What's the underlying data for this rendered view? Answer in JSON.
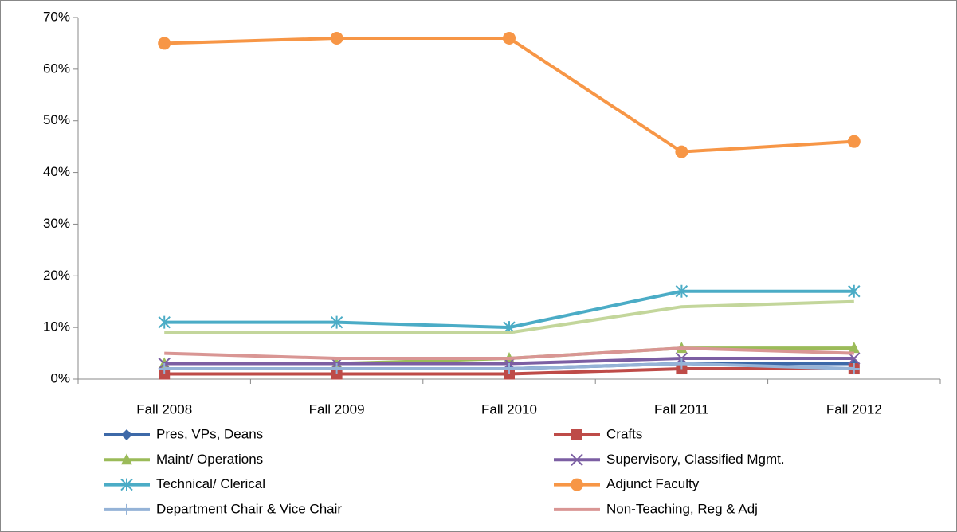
{
  "chart_data": {
    "type": "line",
    "categories": [
      "Fall 2008",
      "Fall 2009",
      "Fall 2010",
      "Fall 2011",
      "Fall 2012"
    ],
    "ylim": [
      0,
      70
    ],
    "yticks": [
      {
        "value": 0,
        "label": "0%"
      },
      {
        "value": 10,
        "label": "10%"
      },
      {
        "value": 20,
        "label": "20%"
      },
      {
        "value": 30,
        "label": "30%"
      },
      {
        "value": 40,
        "label": "40%"
      },
      {
        "value": 50,
        "label": "50%"
      },
      {
        "value": 60,
        "label": "60%"
      },
      {
        "value": 70,
        "label": "70%"
      }
    ],
    "grid": false,
    "legend": "bottom",
    "series": [
      {
        "name": "Pres, VPs, Deans",
        "color": "#3d69a8",
        "marker": "diamond",
        "values": [
          2,
          2,
          2,
          3,
          3
        ]
      },
      {
        "name": "Crafts",
        "color": "#be4b48",
        "marker": "square",
        "values": [
          1,
          1,
          1,
          2,
          2
        ]
      },
      {
        "name": "Maint/ Operations",
        "color": "#9bbb59",
        "marker": "triangle",
        "values": [
          3,
          3,
          4,
          6,
          6
        ]
      },
      {
        "name": "Supervisory, Classified Mgmt.",
        "color": "#7c5fa3",
        "marker": "x",
        "values": [
          3,
          3,
          3,
          4,
          4
        ]
      },
      {
        "name": "Technical/ Clerical",
        "color": "#4bacc6",
        "marker": "star",
        "values": [
          11,
          11,
          10,
          17,
          17
        ]
      },
      {
        "name": "Adjunct Faculty",
        "color": "#f79646",
        "marker": "circle",
        "values": [
          65,
          66,
          66,
          44,
          46
        ]
      },
      {
        "name": "Department Chair & Vice Chair",
        "color": "#95b3d7",
        "marker": "plus",
        "values": [
          2,
          2,
          2,
          3,
          2
        ]
      },
      {
        "name": "Non-Teaching, Reg & Adj",
        "color": "#d99694",
        "marker": "none",
        "values": [
          5,
          4,
          4,
          6,
          5
        ]
      },
      {
        "color": "#c3d69b",
        "marker": "none",
        "values": [
          9,
          9,
          9,
          14,
          15
        ]
      }
    ]
  }
}
